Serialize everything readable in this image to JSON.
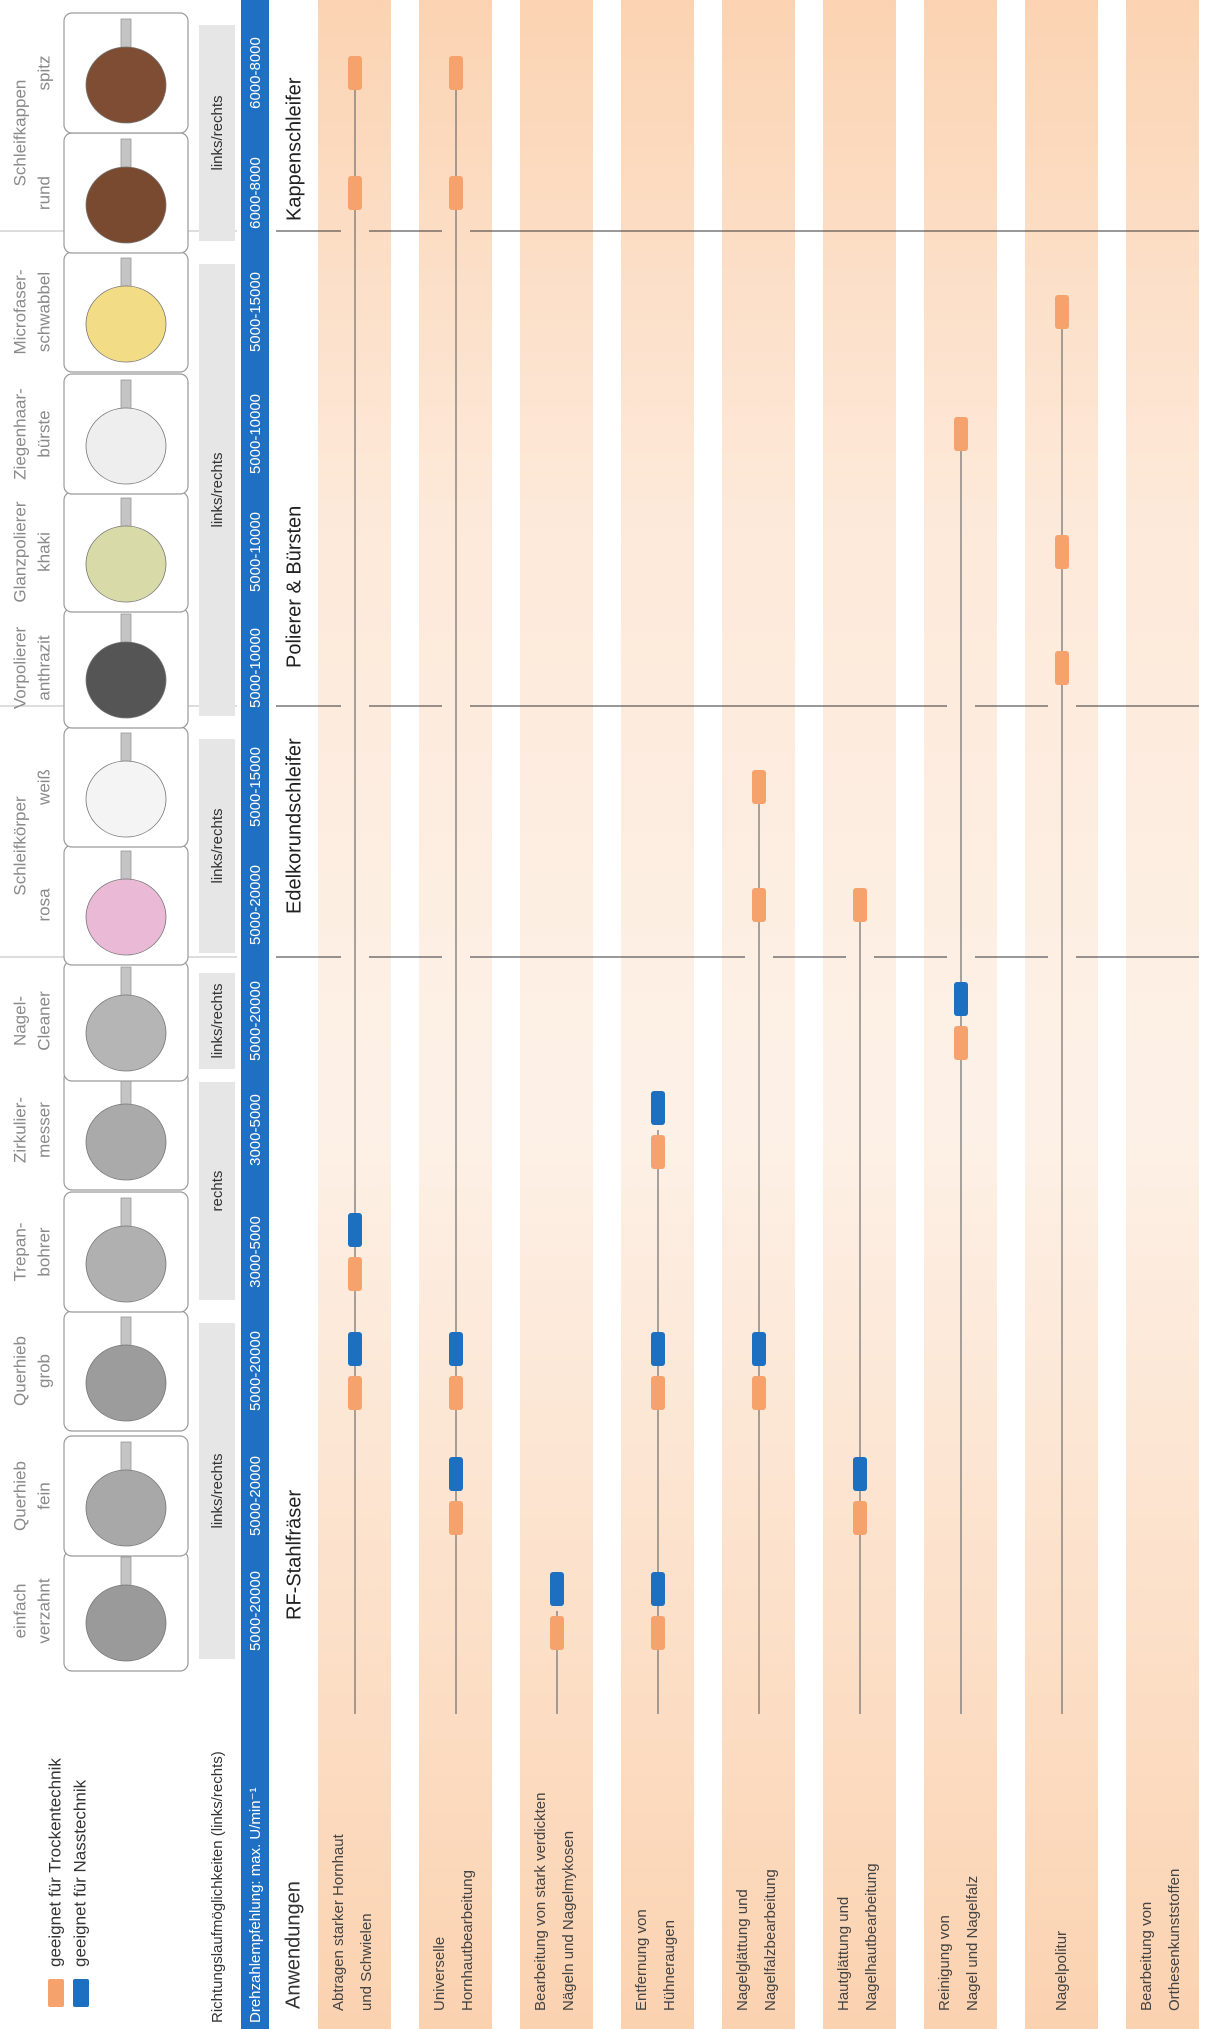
{
  "legend": [
    {
      "label": "geeignet für Trockentechnik",
      "color": "#f5a26c"
    },
    {
      "label": "geeignet für Nasstechnik",
      "color": "#1d6fc0"
    }
  ],
  "header": {
    "direction_label": "Richtungslaufmöglichkeiten (links/rechts)",
    "speed_label": "Drehzahlempfehlung: max. U/min⁻¹",
    "applications_label": "Anwendungen"
  },
  "groups": [
    {
      "name": "RF-Stahlfräser",
      "directions": [
        {
          "label": "links/rechts",
          "tools": [
            {
              "label": [
                "einfach",
                "verzahnt"
              ],
              "speed": "5000-20000"
            },
            {
              "label": [
                "Querhieb",
                "fein"
              ],
              "speed": "5000-20000"
            },
            {
              "label": [
                "Querhieb",
                "grob"
              ],
              "speed": "5000-20000"
            }
          ]
        },
        {
          "label": "rechts",
          "tools": [
            {
              "label": [
                "Trepan-",
                "bohrer"
              ],
              "speed": "3000-5000"
            },
            {
              "label": [
                "Zirkulier-",
                "messer"
              ],
              "speed": "3000-5000"
            }
          ]
        },
        {
          "label": "links/rechts",
          "tools": [
            {
              "label": [
                "Nagel-",
                "Cleaner"
              ],
              "speed": "5000-20000"
            }
          ]
        }
      ]
    },
    {
      "name": "Edelkorundschleifer",
      "title": "Schleifkörper",
      "directions": [
        {
          "label": "links/rechts",
          "tools": [
            {
              "label": [
                "rosa"
              ],
              "speed": "5000-20000"
            },
            {
              "label": [
                "weiß"
              ],
              "speed": "5000-15000"
            }
          ]
        }
      ]
    },
    {
      "name": "Polierer & Bürsten",
      "directions": [
        {
          "label": "links/rechts",
          "tools": [
            {
              "label": [
                "Vorpolierer",
                "anthrazit"
              ],
              "speed": "5000-10000"
            },
            {
              "label": [
                "Glanzpolierer",
                "khaki"
              ],
              "speed": "5000-10000"
            },
            {
              "label": [
                "Ziegenhaar-",
                "bürste"
              ],
              "speed": "5000-10000"
            },
            {
              "label": [
                "Microfaser-",
                "schwabbel"
              ],
              "speed": "5000-15000"
            }
          ]
        }
      ]
    },
    {
      "name": "Kappenschleifer",
      "title": "Schleifkappen",
      "directions": [
        {
          "label": "links/rechts",
          "tools": [
            {
              "label": [
                "rund"
              ],
              "speed": "6000-8000"
            },
            {
              "label": [
                "spitz"
              ],
              "speed": "6000-8000"
            }
          ]
        }
      ]
    }
  ],
  "applications": [
    {
      "label": [
        "Abtragen starker Hornhaut",
        "und Schwielen"
      ],
      "dry": [
        false,
        false,
        true,
        true,
        false,
        false,
        false,
        false,
        false,
        false,
        false,
        false,
        true,
        true
      ],
      "wet": [
        false,
        false,
        true,
        true,
        false,
        false,
        false,
        false,
        false,
        false,
        false,
        false,
        false,
        false
      ]
    },
    {
      "label": [
        "Universelle",
        "Hornhautbearbeitung"
      ],
      "dry": [
        false,
        true,
        true,
        false,
        false,
        false,
        false,
        false,
        false,
        false,
        false,
        false,
        true,
        true
      ],
      "wet": [
        false,
        true,
        true,
        false,
        false,
        false,
        false,
        false,
        false,
        false,
        false,
        false,
        false,
        false
      ]
    },
    {
      "label": [
        "Bearbeitung von stark verdickten",
        "Nägeln und Nagelmykosen"
      ],
      "dry": [
        true,
        false,
        false,
        false,
        false,
        false,
        false,
        false,
        false,
        false,
        false,
        false,
        false,
        false
      ],
      "wet": [
        true,
        false,
        false,
        false,
        false,
        false,
        false,
        false,
        false,
        false,
        false,
        false,
        false,
        false
      ]
    },
    {
      "label": [
        "Entfernung von",
        "Hühneraugen"
      ],
      "dry": [
        true,
        false,
        true,
        false,
        true,
        false,
        false,
        false,
        false,
        false,
        false,
        false,
        false,
        false
      ],
      "wet": [
        true,
        false,
        true,
        false,
        true,
        false,
        false,
        false,
        false,
        false,
        false,
        false,
        false,
        false
      ]
    },
    {
      "label": [
        "Nagelglättung und",
        "Nagelfalzbearbeitung"
      ],
      "dry": [
        false,
        false,
        true,
        false,
        false,
        false,
        true,
        true,
        false,
        false,
        false,
        false,
        false,
        false
      ],
      "wet": [
        false,
        false,
        true,
        false,
        false,
        false,
        false,
        false,
        false,
        false,
        false,
        false,
        false,
        false
      ]
    },
    {
      "label": [
        "Hautglättung und",
        "Nagelhautbearbeitung"
      ],
      "dry": [
        false,
        true,
        false,
        false,
        false,
        false,
        true,
        false,
        false,
        false,
        false,
        false,
        false,
        false
      ],
      "wet": [
        false,
        true,
        false,
        false,
        false,
        false,
        false,
        false,
        false,
        false,
        false,
        false,
        false,
        false
      ]
    },
    {
      "label": [
        "Reinigung von",
        "Nagel und Nagelfalz"
      ],
      "dry": [
        false,
        false,
        false,
        false,
        false,
        true,
        false,
        false,
        false,
        false,
        true,
        false,
        false,
        false
      ],
      "wet": [
        false,
        false,
        false,
        false,
        false,
        true,
        false,
        false,
        false,
        false,
        false,
        false,
        false,
        false
      ]
    },
    {
      "label": [
        "Nagelpolitur"
      ],
      "dry": [
        false,
        false,
        false,
        false,
        false,
        false,
        false,
        false,
        true,
        true,
        false,
        true,
        false,
        false
      ],
      "wet": [
        false,
        false,
        false,
        false,
        false,
        false,
        false,
        false,
        false,
        false,
        false,
        false,
        false,
        false
      ]
    },
    {
      "label": [
        "Bearbeitung von",
        "Orthesenkunststoffen"
      ],
      "dry": [
        false,
        false,
        false,
        false,
        false,
        false,
        false,
        false,
        false,
        false,
        false,
        false,
        false,
        false
      ],
      "wet": [
        false,
        false,
        false,
        false,
        false,
        false,
        false,
        false,
        false,
        false,
        false,
        false,
        false,
        false
      ]
    }
  ]
}
